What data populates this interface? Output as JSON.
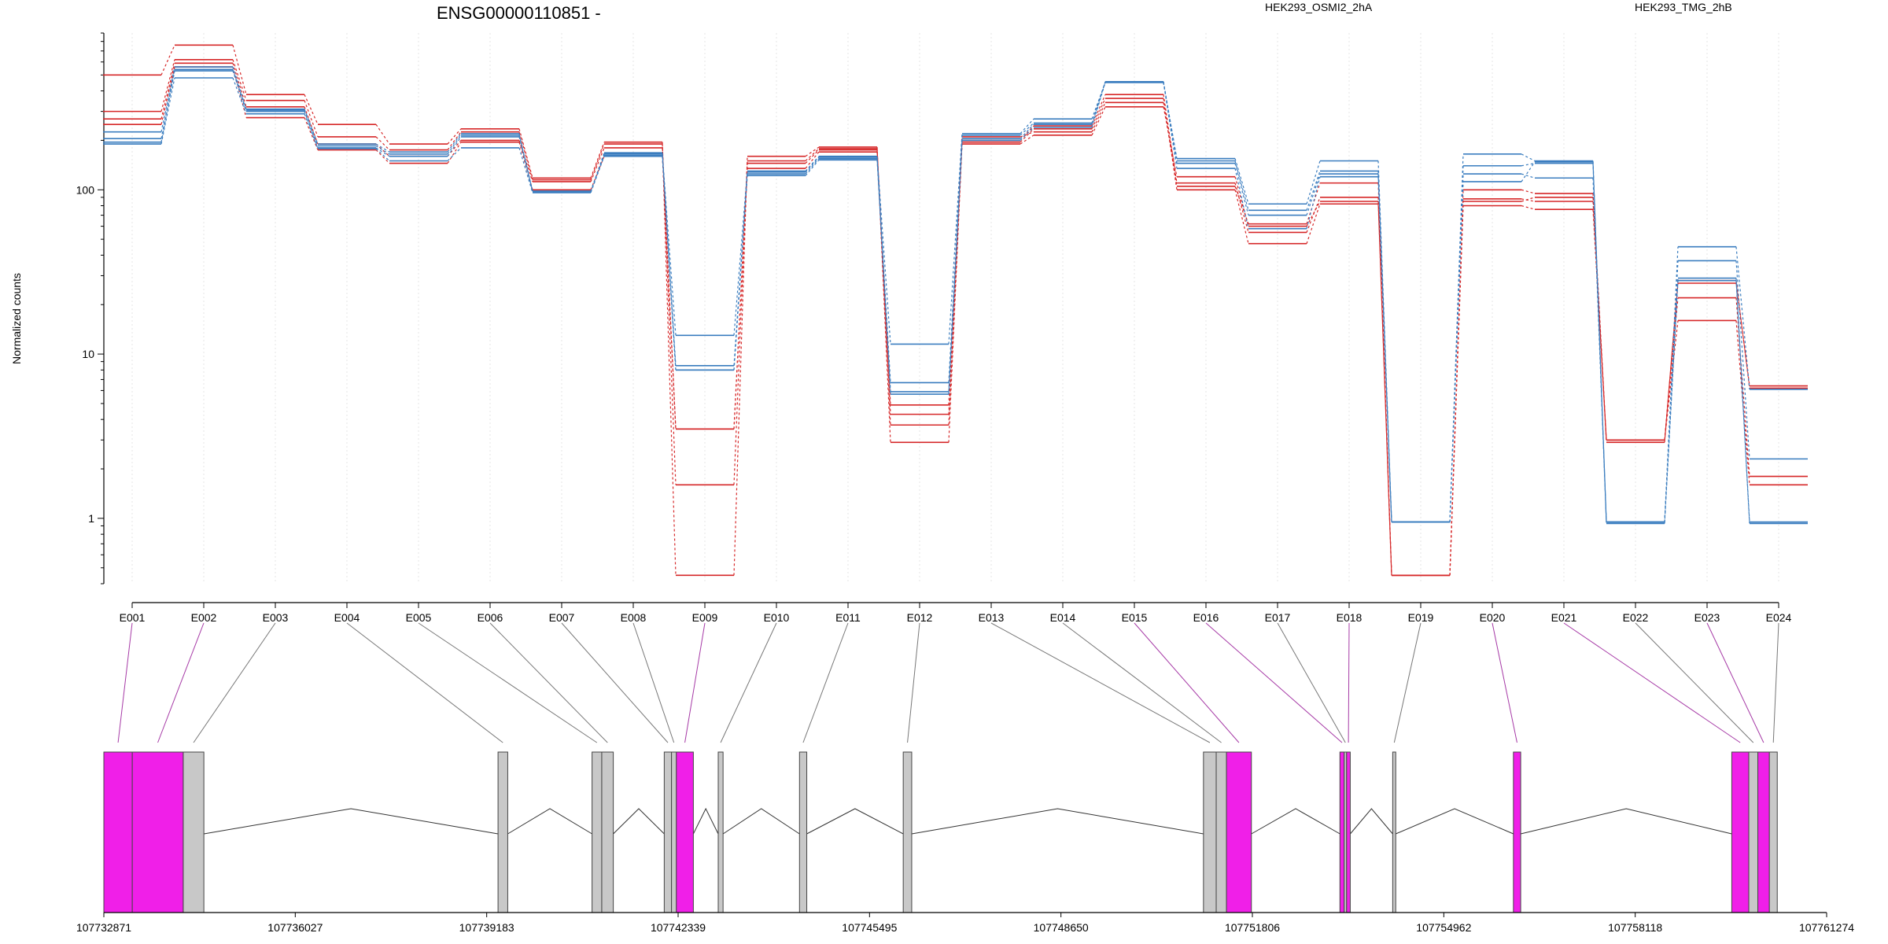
{
  "chart_data": {
    "type": "line",
    "title": "ENSG00000110851 -",
    "ylabel": "Normalized counts",
    "yscale": "log",
    "ylim": [
      0.4,
      900
    ],
    "yticks": [
      1,
      10,
      100
    ],
    "ytick_labels": [
      "1",
      "10",
      "100"
    ],
    "categories": [
      "E001",
      "E002",
      "E003",
      "E004",
      "E005",
      "E006",
      "E007",
      "E008",
      "E009",
      "E010",
      "E011",
      "E012",
      "E013",
      "E014",
      "E015",
      "E016",
      "E017",
      "E018",
      "E019",
      "E020",
      "E021",
      "E022",
      "E023",
      "E024"
    ],
    "legend": [
      {
        "name": "HEK293_OSMI2_2hA",
        "color": "#d62728"
      },
      {
        "name": "HEK293_TMG_2hB",
        "color": "#3a7dbf"
      }
    ],
    "series": [
      {
        "color": "#d62728",
        "values": [
          500,
          760,
          380,
          250,
          190,
          235,
          118,
          195,
          0.45,
          160,
          182,
          2.9,
          195,
          235,
          360,
          100,
          47,
          82,
          0.45,
          80,
          76,
          3.0,
          16,
          1.6
        ]
      },
      {
        "color": "#d62728",
        "values": [
          300,
          620,
          350,
          210,
          175,
          225,
          115,
          190,
          1.6,
          150,
          178,
          3.7,
          200,
          245,
          380,
          110,
          55,
          90,
          0.45,
          88,
          85,
          3.0,
          22,
          1.8
        ]
      },
      {
        "color": "#d62728",
        "values": [
          270,
          590,
          320,
          190,
          160,
          200,
          112,
          180,
          3.5,
          145,
          175,
          4.3,
          210,
          225,
          340,
          105,
          62,
          110,
          0.45,
          100,
          95,
          3.0,
          27,
          6.4
        ]
      },
      {
        "color": "#d62728",
        "values": [
          250,
          560,
          275,
          175,
          145,
          195,
          100,
          160,
          3.5,
          135,
          170,
          4.9,
          190,
          215,
          320,
          120,
          60,
          85,
          0.45,
          85,
          90,
          2.9,
          28,
          6.2
        ]
      },
      {
        "color": "#3a7dbf",
        "values": [
          225,
          560,
          310,
          190,
          170,
          220,
          98,
          165,
          13,
          130,
          160,
          11.5,
          220,
          270,
          450,
          155,
          82,
          150,
          0.95,
          165,
          150,
          0.95,
          45,
          6.1
        ]
      },
      {
        "color": "#3a7dbf",
        "values": [
          205,
          540,
          305,
          185,
          165,
          215,
          98,
          168,
          8.5,
          128,
          158,
          6.7,
          215,
          255,
          455,
          150,
          75,
          130,
          0.95,
          140,
          145,
          0.95,
          37,
          2.3
        ]
      },
      {
        "color": "#3a7dbf",
        "values": [
          195,
          530,
          300,
          180,
          160,
          210,
          97,
          162,
          8.0,
          125,
          155,
          5.9,
          205,
          250,
          455,
          145,
          70,
          125,
          0.95,
          125,
          118,
          0.95,
          29,
          0.95
        ]
      },
      {
        "color": "#3a7dbf",
        "values": [
          190,
          480,
          290,
          178,
          150,
          180,
          96,
          160,
          8.0,
          122,
          152,
          5.7,
          200,
          240,
          450,
          135,
          58,
          120,
          0.95,
          112,
          148,
          0.93,
          28,
          0.93
        ]
      }
    ],
    "gene_model": {
      "position_ticks": [
        "107732871",
        "107736027",
        "107739183",
        "107742339",
        "107745495",
        "107748650",
        "107751806",
        "107754962",
        "107758118",
        "107761274"
      ],
      "coord_start": 107732871,
      "coord_end": 107761274,
      "exons": [
        {
          "id": "E001",
          "start": 107732871,
          "end": 107733340,
          "color": "#f01fe8",
          "highlight": true
        },
        {
          "id": "E002",
          "start": 107733340,
          "end": 107734180,
          "color": "#f01fe8",
          "highlight": true
        },
        {
          "id": "E003",
          "start": 107734180,
          "end": 107734520,
          "color": "#c8c8c8",
          "highlight": false
        },
        {
          "id": "E004",
          "start": 107739370,
          "end": 107739530,
          "color": "#c8c8c8",
          "highlight": false
        },
        {
          "id": "E005",
          "start": 107740920,
          "end": 107741080,
          "color": "#c8c8c8",
          "highlight": false
        },
        {
          "id": "E006",
          "start": 107741080,
          "end": 107741270,
          "color": "#c8c8c8",
          "highlight": false
        },
        {
          "id": "E007",
          "start": 107742110,
          "end": 107742230,
          "color": "#c8c8c8",
          "highlight": false
        },
        {
          "id": "E008",
          "start": 107742230,
          "end": 107742310,
          "color": "#c8c8c8",
          "highlight": false
        },
        {
          "id": "E009",
          "start": 107742310,
          "end": 107742590,
          "color": "#f01fe8",
          "highlight": true
        },
        {
          "id": "E010",
          "start": 107743000,
          "end": 107743080,
          "color": "#c8c8c8",
          "highlight": false
        },
        {
          "id": "E011",
          "start": 107744340,
          "end": 107744460,
          "color": "#c8c8c8",
          "highlight": false
        },
        {
          "id": "E012",
          "start": 107746050,
          "end": 107746190,
          "color": "#c8c8c8",
          "highlight": false
        },
        {
          "id": "E013",
          "start": 107751000,
          "end": 107751210,
          "color": "#c8c8c8",
          "highlight": false
        },
        {
          "id": "E014",
          "start": 107751210,
          "end": 107751380,
          "color": "#c8c8c8",
          "highlight": false
        },
        {
          "id": "E015",
          "start": 107751380,
          "end": 107751790,
          "color": "#f01fe8",
          "highlight": true
        },
        {
          "id": "E016",
          "start": 107753250,
          "end": 107753320,
          "color": "#f01fe8",
          "highlight": true
        },
        {
          "id": "E017",
          "start": 107753320,
          "end": 107753360,
          "color": "#c8c8c8",
          "highlight": false
        },
        {
          "id": "E018",
          "start": 107753360,
          "end": 107753420,
          "color": "#f01fe8",
          "highlight": true
        },
        {
          "id": "E019",
          "start": 107754120,
          "end": 107754170,
          "color": "#c8c8c8",
          "highlight": false
        },
        {
          "id": "E020",
          "start": 107756110,
          "end": 107756230,
          "color": "#f01fe8",
          "highlight": true
        },
        {
          "id": "E021",
          "start": 107759710,
          "end": 107759990,
          "color": "#f01fe8",
          "highlight": true
        },
        {
          "id": "E022",
          "start": 107759990,
          "end": 107760140,
          "color": "#c8c8c8",
          "highlight": false
        },
        {
          "id": "E023",
          "start": 107760140,
          "end": 107760330,
          "color": "#f01fe8",
          "highlight": true
        },
        {
          "id": "E024",
          "start": 107760330,
          "end": 107760460,
          "color": "#c8c8c8",
          "highlight": false
        }
      ]
    }
  }
}
